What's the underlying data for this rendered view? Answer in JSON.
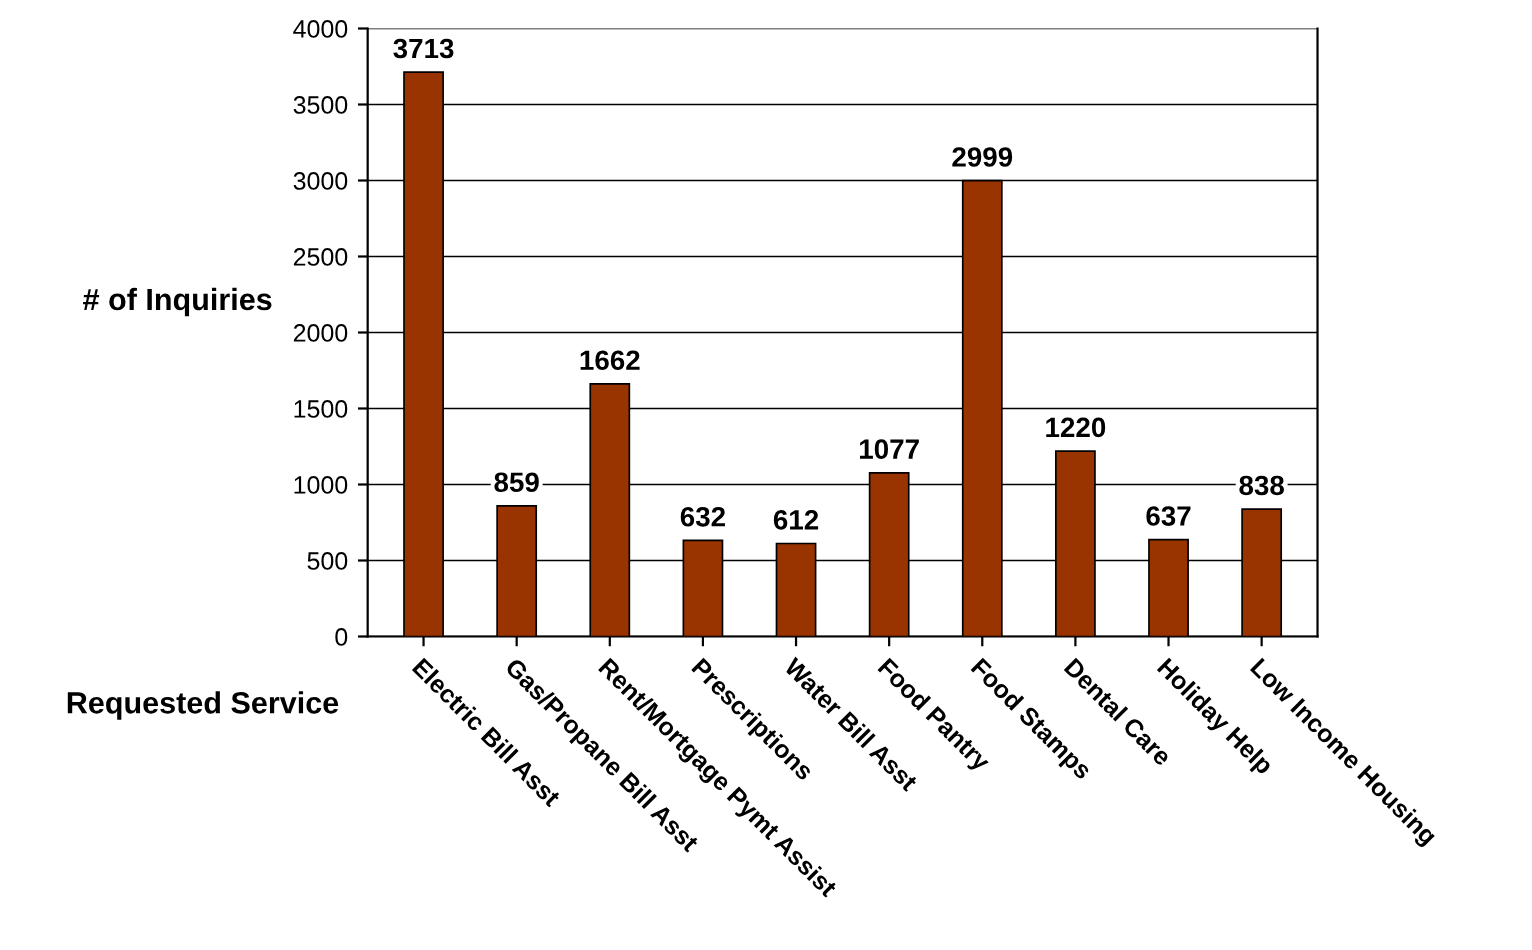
{
  "chart_data": {
    "type": "bar",
    "xlabel": "Requested Service",
    "ylabel": "# of Inquiries",
    "categories": [
      "Electric Bill Asst",
      "Gas/Propane Bill Asst",
      "Rent/Mortgage Pymt Assist",
      "Prescriptions",
      "Water Bill Asst",
      "Food Pantry",
      "Food Stamps",
      "Dental Care",
      "Holiday Help",
      "Low Income Housing"
    ],
    "values": [
      3713,
      859,
      1662,
      632,
      612,
      1077,
      2999,
      1220,
      637,
      838
    ],
    "color": "#993300",
    "ylim": [
      0,
      4000
    ],
    "yticks": [
      0,
      500,
      1000,
      1500,
      2000,
      2500,
      3000,
      3500,
      4000
    ],
    "grid": "y",
    "data_labels": true,
    "legend": false
  }
}
